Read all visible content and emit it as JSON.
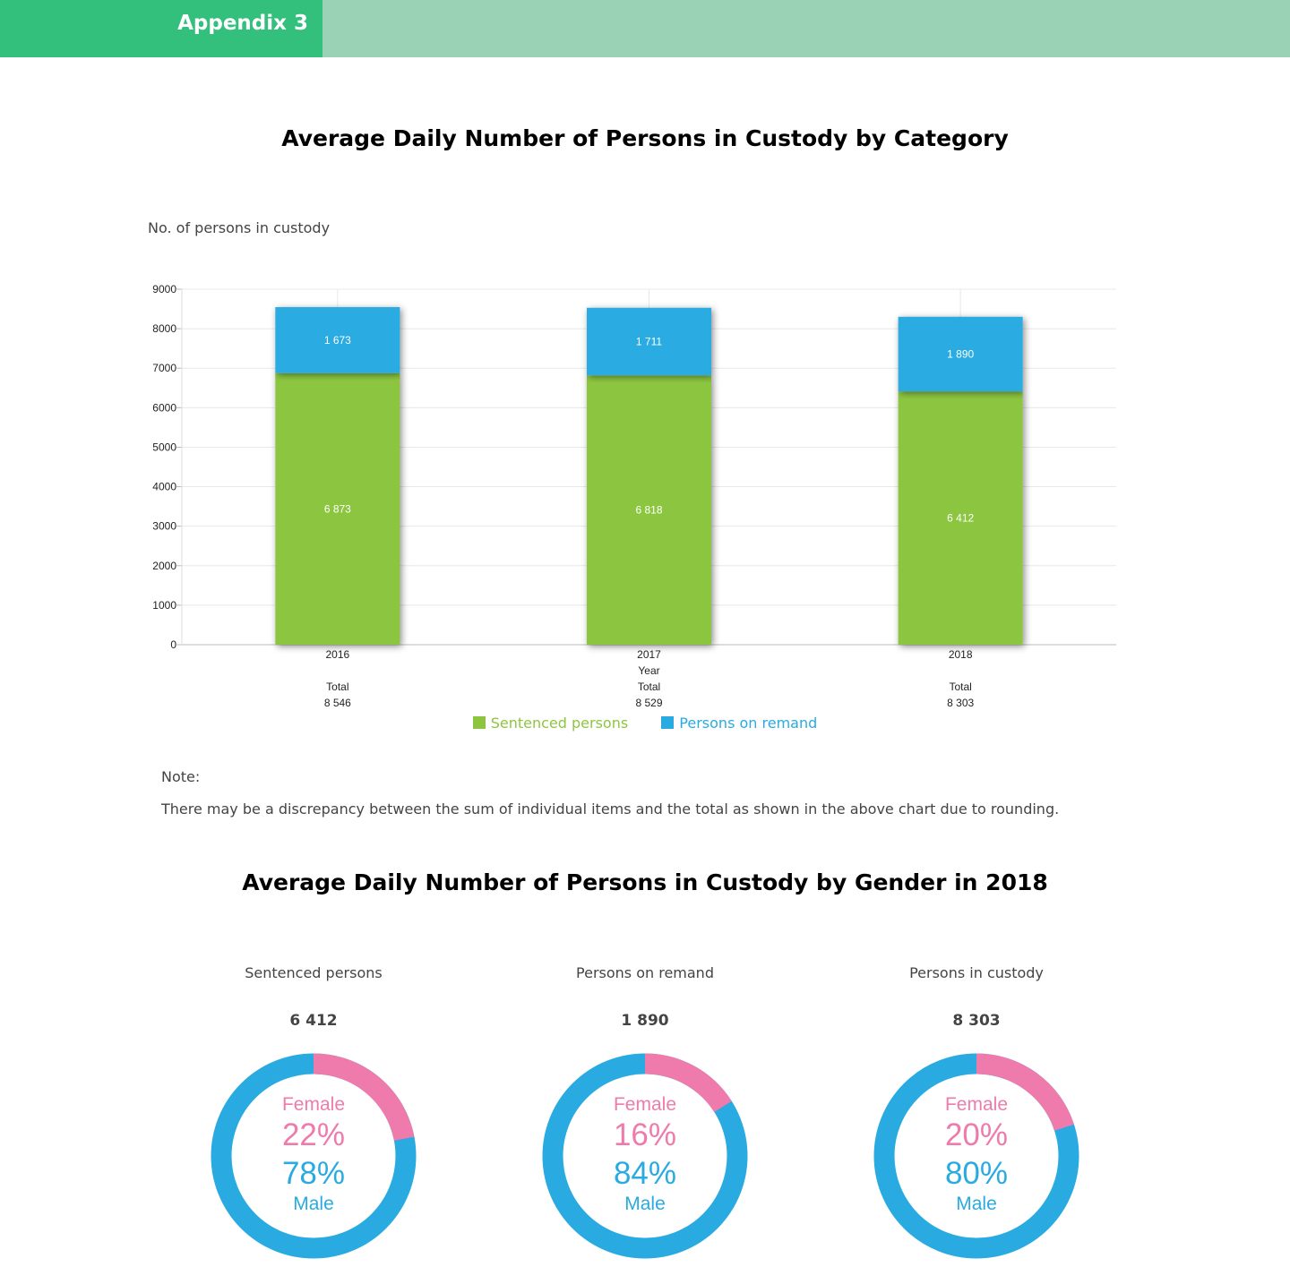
{
  "header": {
    "tab_label": "Appendix 3"
  },
  "colors": {
    "sentenced": "#8cc63f",
    "remand": "#29abe2",
    "female": "#ee7bac",
    "male": "#29abe2"
  },
  "chart_data": [
    {
      "type": "bar",
      "stacked": true,
      "title": "Average Daily Number of Persons in Custody by Category",
      "ylabel": "No. of persons in custody",
      "xlabel": "Year",
      "ylim": [
        0,
        9000
      ],
      "yticks": [
        "0",
        "1000",
        "2000",
        "3000",
        "4000",
        "5000",
        "6000",
        "7000",
        "8000",
        "9000"
      ],
      "categories": [
        "2016",
        "2017",
        "2018"
      ],
      "series": [
        {
          "name": "Sentenced persons",
          "values": [
            6873,
            6818,
            6412
          ],
          "labels": [
            "6 873",
            "6 818",
            "6 412"
          ]
        },
        {
          "name": "Persons on remand",
          "values": [
            1673,
            1711,
            1890
          ],
          "labels": [
            "1 673",
            "1 711",
            "1 890"
          ]
        }
      ],
      "total_label": "Total",
      "totals": [
        "8 546",
        "8 529",
        "8 303"
      ],
      "grid": true,
      "legend": "bottom"
    },
    {
      "type": "pie",
      "title": "Average Daily Number of Persons in Custody by Gender in 2018",
      "segment_labels": [
        "Female",
        "Male"
      ],
      "charts": [
        {
          "name": "Sentenced persons",
          "total": "6 412",
          "female_pct": "22%",
          "male_pct": "78%",
          "female": 22,
          "male": 78
        },
        {
          "name": "Persons on remand",
          "total": "1 890",
          "female_pct": "16%",
          "male_pct": "84%",
          "female": 16,
          "male": 84
        },
        {
          "name": "Persons in custody",
          "total": "8 303",
          "female_pct": "20%",
          "male_pct": "80%",
          "female": 20,
          "male": 80
        }
      ]
    }
  ],
  "note": {
    "label": "Note:",
    "text": "There may be a discrepancy between the sum of individual items and the total as shown in the above chart due to rounding."
  }
}
